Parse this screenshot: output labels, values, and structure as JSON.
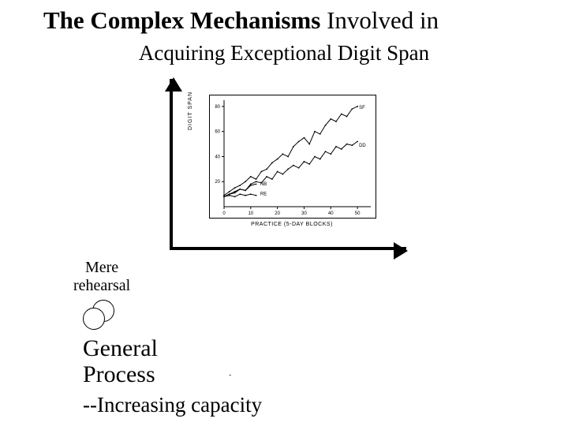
{
  "title": {
    "line1_bold": "The Complex Mechanisms",
    "line1_rest": " Involved in",
    "line2": "Acquiring Exceptional Digit Span"
  },
  "mere_rehearsal": {
    "line1": "Mere",
    "line2": "rehearsal"
  },
  "general_process": {
    "line1": "General",
    "line2": "Process",
    "bullet": "--Increasing capacity"
  },
  "plot": {
    "type": "line",
    "xlabel": "PRACTICE (5-DAY BLOCKS)",
    "ylabel": "DIGIT SPAN",
    "xlim": [
      0,
      55
    ],
    "ylim": [
      0,
      85
    ],
    "xticks": [
      0,
      10,
      20,
      30,
      40,
      50
    ],
    "yticks": [
      20,
      40,
      60,
      80
    ],
    "line_color": "#000000",
    "background_color": "#ffffff",
    "line_width": 1,
    "series": [
      {
        "name": "SF",
        "label_pos": [
          50,
          78
        ],
        "x": [
          0,
          2,
          4,
          6,
          8,
          10,
          12,
          14,
          16,
          18,
          20,
          22,
          24,
          26,
          28,
          30,
          32,
          34,
          36,
          38,
          40,
          42,
          44,
          46,
          48,
          50
        ],
        "y": [
          9,
          12,
          15,
          17,
          20,
          24,
          22,
          28,
          30,
          35,
          38,
          42,
          40,
          48,
          52,
          55,
          50,
          60,
          58,
          65,
          70,
          68,
          74,
          72,
          78,
          80
        ]
      },
      {
        "name": "DD",
        "label_pos": [
          50,
          48
        ],
        "x": [
          0,
          2,
          4,
          6,
          8,
          10,
          12,
          14,
          16,
          18,
          20,
          22,
          24,
          26,
          28,
          30,
          32,
          34,
          36,
          38,
          40,
          42,
          44,
          46,
          48,
          50
        ],
        "y": [
          8,
          10,
          11,
          14,
          13,
          18,
          20,
          19,
          24,
          22,
          28,
          26,
          30,
          33,
          31,
          36,
          34,
          40,
          38,
          44,
          42,
          48,
          46,
          50,
          49,
          52
        ]
      },
      {
        "name": "NB",
        "label_pos": [
          13,
          17
        ],
        "x": [
          0,
          2,
          4,
          6,
          8,
          10,
          12
        ],
        "y": [
          8,
          10,
          12,
          14,
          13,
          17,
          18
        ]
      },
      {
        "name": "RE",
        "label_pos": [
          13,
          9
        ],
        "x": [
          0,
          2,
          4,
          6,
          8,
          10,
          12
        ],
        "y": [
          8,
          9,
          8,
          10,
          9,
          10,
          9
        ]
      }
    ]
  },
  "colors": {
    "text": "#000000",
    "background": "#ffffff"
  },
  "fonts": {
    "title_size_pt": 31,
    "subtitle_size_pt": 27,
    "body_size_pt": 30,
    "plot_tick_size_pt": 7
  }
}
